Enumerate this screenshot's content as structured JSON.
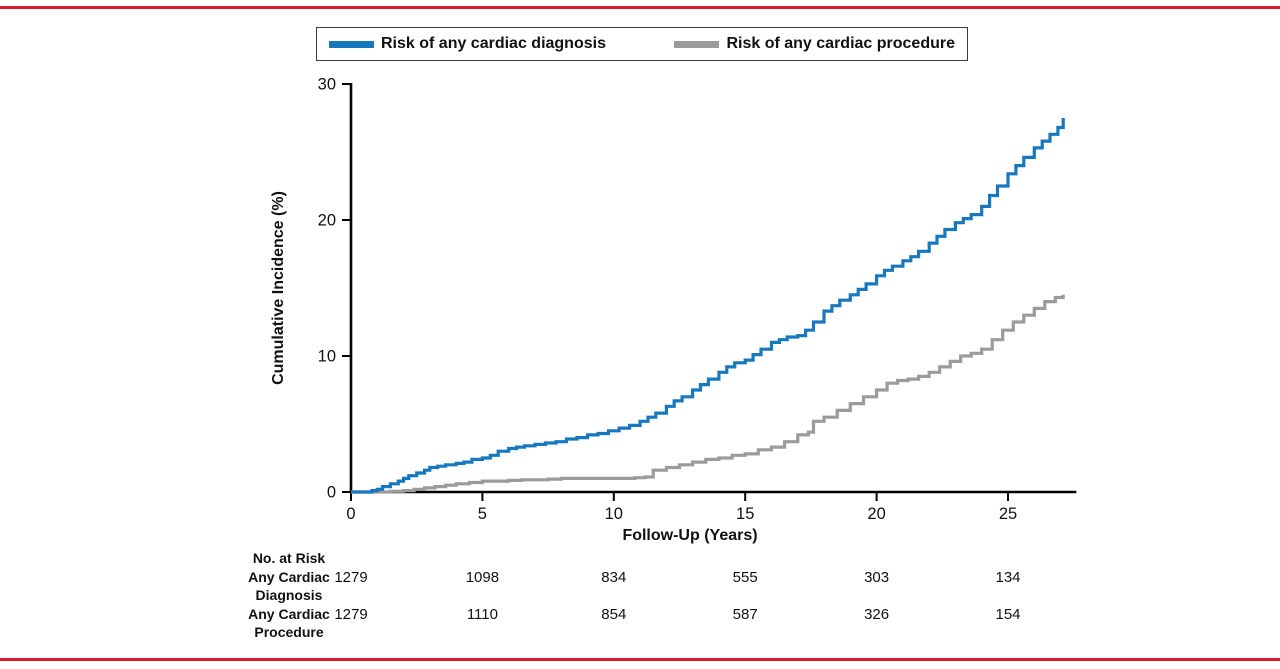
{
  "figure": {
    "rule_color": "#e0192b",
    "background": "#ffffff",
    "text_color": "#111111",
    "axis_color": "#000000"
  },
  "legend": {
    "items": [
      {
        "label": "Risk of any cardiac diagnosis",
        "color": "#1878be"
      },
      {
        "label": "Risk of any cardiac procedure",
        "color": "#9b9b9b"
      }
    ]
  },
  "chart_data": {
    "type": "line",
    "subtype": "cumulative-incidence-step",
    "title": "",
    "xlabel": "Follow-Up (Years)",
    "ylabel": "Cumulative Incidence (%)",
    "xlim": [
      0,
      27.6
    ],
    "ylim": [
      0,
      30
    ],
    "xticks": [
      0,
      5,
      10,
      15,
      20,
      25
    ],
    "yticks": [
      0,
      10,
      20,
      30
    ],
    "grid": false,
    "legend_position": "top",
    "line_style": "step-after",
    "series": [
      {
        "name": "Risk of any cardiac diagnosis",
        "color": "#1878be",
        "x": [
          0,
          0.8,
          1.0,
          1.2,
          1.5,
          1.8,
          2.0,
          2.2,
          2.5,
          2.8,
          3.0,
          3.3,
          3.6,
          4.0,
          4.3,
          4.6,
          5.0,
          5.3,
          5.6,
          6.0,
          6.3,
          6.6,
          7.0,
          7.4,
          7.8,
          8.2,
          8.6,
          9.0,
          9.4,
          9.8,
          10.2,
          10.6,
          11.0,
          11.3,
          11.6,
          12.0,
          12.3,
          12.6,
          13.0,
          13.3,
          13.6,
          14.0,
          14.3,
          14.6,
          15.0,
          15.3,
          15.6,
          16.0,
          16.3,
          16.6,
          17.0,
          17.3,
          17.6,
          18.0,
          18.3,
          18.6,
          19.0,
          19.3,
          19.6,
          20.0,
          20.3,
          20.6,
          21.0,
          21.3,
          21.6,
          22.0,
          22.3,
          22.6,
          23.0,
          23.3,
          23.6,
          24.0,
          24.3,
          24.6,
          25.0,
          25.3,
          25.6,
          26.0,
          26.3,
          26.6,
          26.9,
          27.1
        ],
        "y": [
          0,
          0.1,
          0.2,
          0.4,
          0.6,
          0.8,
          1.0,
          1.2,
          1.4,
          1.6,
          1.8,
          1.9,
          2.0,
          2.1,
          2.2,
          2.4,
          2.5,
          2.7,
          3.0,
          3.2,
          3.3,
          3.4,
          3.5,
          3.6,
          3.7,
          3.9,
          4.0,
          4.2,
          4.3,
          4.5,
          4.7,
          4.9,
          5.2,
          5.5,
          5.8,
          6.3,
          6.7,
          7.0,
          7.5,
          7.9,
          8.3,
          8.8,
          9.2,
          9.5,
          9.7,
          10.1,
          10.5,
          11.0,
          11.2,
          11.4,
          11.5,
          11.9,
          12.5,
          13.3,
          13.7,
          14.1,
          14.5,
          14.9,
          15.3,
          15.9,
          16.3,
          16.6,
          17.0,
          17.3,
          17.7,
          18.3,
          18.8,
          19.3,
          19.8,
          20.1,
          20.4,
          21.0,
          21.8,
          22.5,
          23.4,
          24.0,
          24.6,
          25.3,
          25.8,
          26.3,
          26.8,
          27.5
        ]
      },
      {
        "name": "Risk of any cardiac procedure",
        "color": "#9b9b9b",
        "x": [
          0,
          1.5,
          2.0,
          2.4,
          2.8,
          3.2,
          3.6,
          4.0,
          4.5,
          5.0,
          5.5,
          6.0,
          6.5,
          7.0,
          7.5,
          8.0,
          9.0,
          10.0,
          10.8,
          11.2,
          11.5,
          12.0,
          12.5,
          13.0,
          13.5,
          14.0,
          14.5,
          15.0,
          15.5,
          16.0,
          16.5,
          17.0,
          17.4,
          17.6,
          18.0,
          18.5,
          19.0,
          19.5,
          20.0,
          20.4,
          20.8,
          21.2,
          21.6,
          22.0,
          22.4,
          22.8,
          23.2,
          23.6,
          24.0,
          24.4,
          24.8,
          25.2,
          25.6,
          26.0,
          26.4,
          26.8,
          27.1
        ],
        "y": [
          0,
          0.05,
          0.1,
          0.2,
          0.3,
          0.4,
          0.5,
          0.6,
          0.7,
          0.8,
          0.8,
          0.85,
          0.9,
          0.9,
          0.95,
          1.0,
          1.0,
          1.0,
          1.05,
          1.1,
          1.6,
          1.8,
          2.0,
          2.2,
          2.4,
          2.5,
          2.7,
          2.8,
          3.1,
          3.3,
          3.7,
          4.2,
          4.4,
          5.2,
          5.5,
          6.0,
          6.5,
          7.0,
          7.5,
          8.0,
          8.2,
          8.3,
          8.5,
          8.8,
          9.2,
          9.6,
          10.0,
          10.2,
          10.5,
          11.2,
          11.9,
          12.5,
          13.0,
          13.5,
          14.0,
          14.3,
          14.5
        ]
      }
    ],
    "risk_table": {
      "header": "No. at Risk",
      "timepoints": [
        0,
        5,
        10,
        15,
        20,
        25
      ],
      "rows": [
        {
          "label_lines": [
            "Any Cardiac",
            "Diagnosis"
          ],
          "values": [
            "1279",
            "1098",
            "834",
            "555",
            "303",
            "134"
          ]
        },
        {
          "label_lines": [
            "Any Cardiac",
            "Procedure"
          ],
          "values": [
            "1279",
            "1110",
            "854",
            "587",
            "326",
            "154"
          ]
        }
      ]
    }
  }
}
